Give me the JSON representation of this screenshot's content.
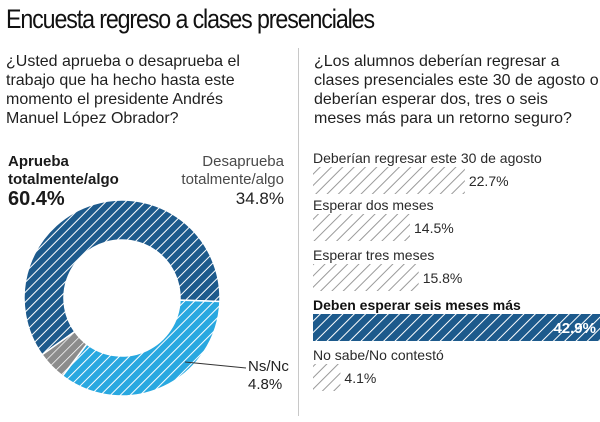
{
  "title": "Encuesta regreso a clases presenciales",
  "left": {
    "question": "¿Usted aprueba o desaprueba el trabajo que ha hecho hasta este momento el presidente Andrés Manuel López Obrador?",
    "approve_label": "Aprueba totalmente/algo",
    "approve_pct": "60.4%",
    "disapprove_label": "Desaprueba totalmente/algo",
    "disapprove_pct": "34.8%",
    "nsnc_label": "Ns/Nc",
    "nsnc_pct": "4.8%"
  },
  "right": {
    "question": "¿Los alumnos deberían regresar a clases presenciales este 30 de agosto o deberían esperar dos, tres o seis meses más para un retorno seguro?"
  },
  "colors": {
    "dark_blue": "#1d5a8c",
    "light_blue": "#29a8e0",
    "gray": "#8c8c8c",
    "hatch_gray": "#9a9a9a"
  },
  "chart_data": [
    {
      "type": "pie",
      "style": "donut",
      "categories": [
        "Aprueba totalmente/algo",
        "Desaprueba totalmente/algo",
        "Ns/Nc"
      ],
      "values": [
        60.4,
        34.8,
        4.8
      ]
    },
    {
      "type": "bar",
      "orientation": "horizontal",
      "categories": [
        "Deberían regresar este 30 de agosto",
        "Esperar dos meses",
        "Esperar tres meses",
        "Deben esperar seis meses más",
        "No sabe/No contestó"
      ],
      "values": [
        22.7,
        14.5,
        15.8,
        42.9,
        4.1
      ],
      "value_labels": [
        "22.7%",
        "14.5%",
        "15.8%",
        "42.9%",
        "4.1%"
      ],
      "highlight": "Deben esperar seis meses más"
    }
  ]
}
